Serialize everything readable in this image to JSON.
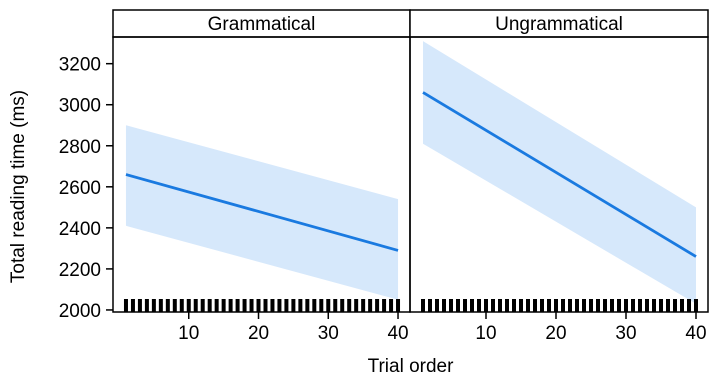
{
  "chart_data": {
    "type": "line",
    "xlabel": "Trial order",
    "ylabel": "Total reading time (ms)",
    "xlim": [
      0,
      41
    ],
    "ylim": [
      1990,
      3330
    ],
    "x_ticks": [
      10,
      20,
      30,
      40
    ],
    "y_ticks": [
      2000,
      2200,
      2400,
      2600,
      2800,
      3000,
      3200
    ],
    "grid": false,
    "legend": "none",
    "panels": [
      {
        "title": "Grammatical",
        "fit": {
          "x": [
            1,
            40
          ],
          "y": [
            2660,
            2290
          ]
        },
        "ci_lower": {
          "x": [
            1,
            40
          ],
          "y": [
            2410,
            2050
          ]
        },
        "ci_upper": {
          "x": [
            1,
            40
          ],
          "y": [
            2900,
            2540
          ]
        },
        "rug_range": [
          1,
          40
        ]
      },
      {
        "title": "Ungrammatical",
        "fit": {
          "x": [
            1,
            40
          ],
          "y": [
            3060,
            2260
          ]
        },
        "ci_lower": {
          "x": [
            1,
            40
          ],
          "y": [
            2810,
            2030
          ]
        },
        "ci_upper": {
          "x": [
            1,
            40
          ],
          "y": [
            3310,
            2500
          ]
        },
        "rug_range": [
          1,
          40
        ]
      }
    ],
    "colors": {
      "line": "#1a7ae0",
      "band": "#d6e8fb",
      "rug": "#000000"
    }
  }
}
